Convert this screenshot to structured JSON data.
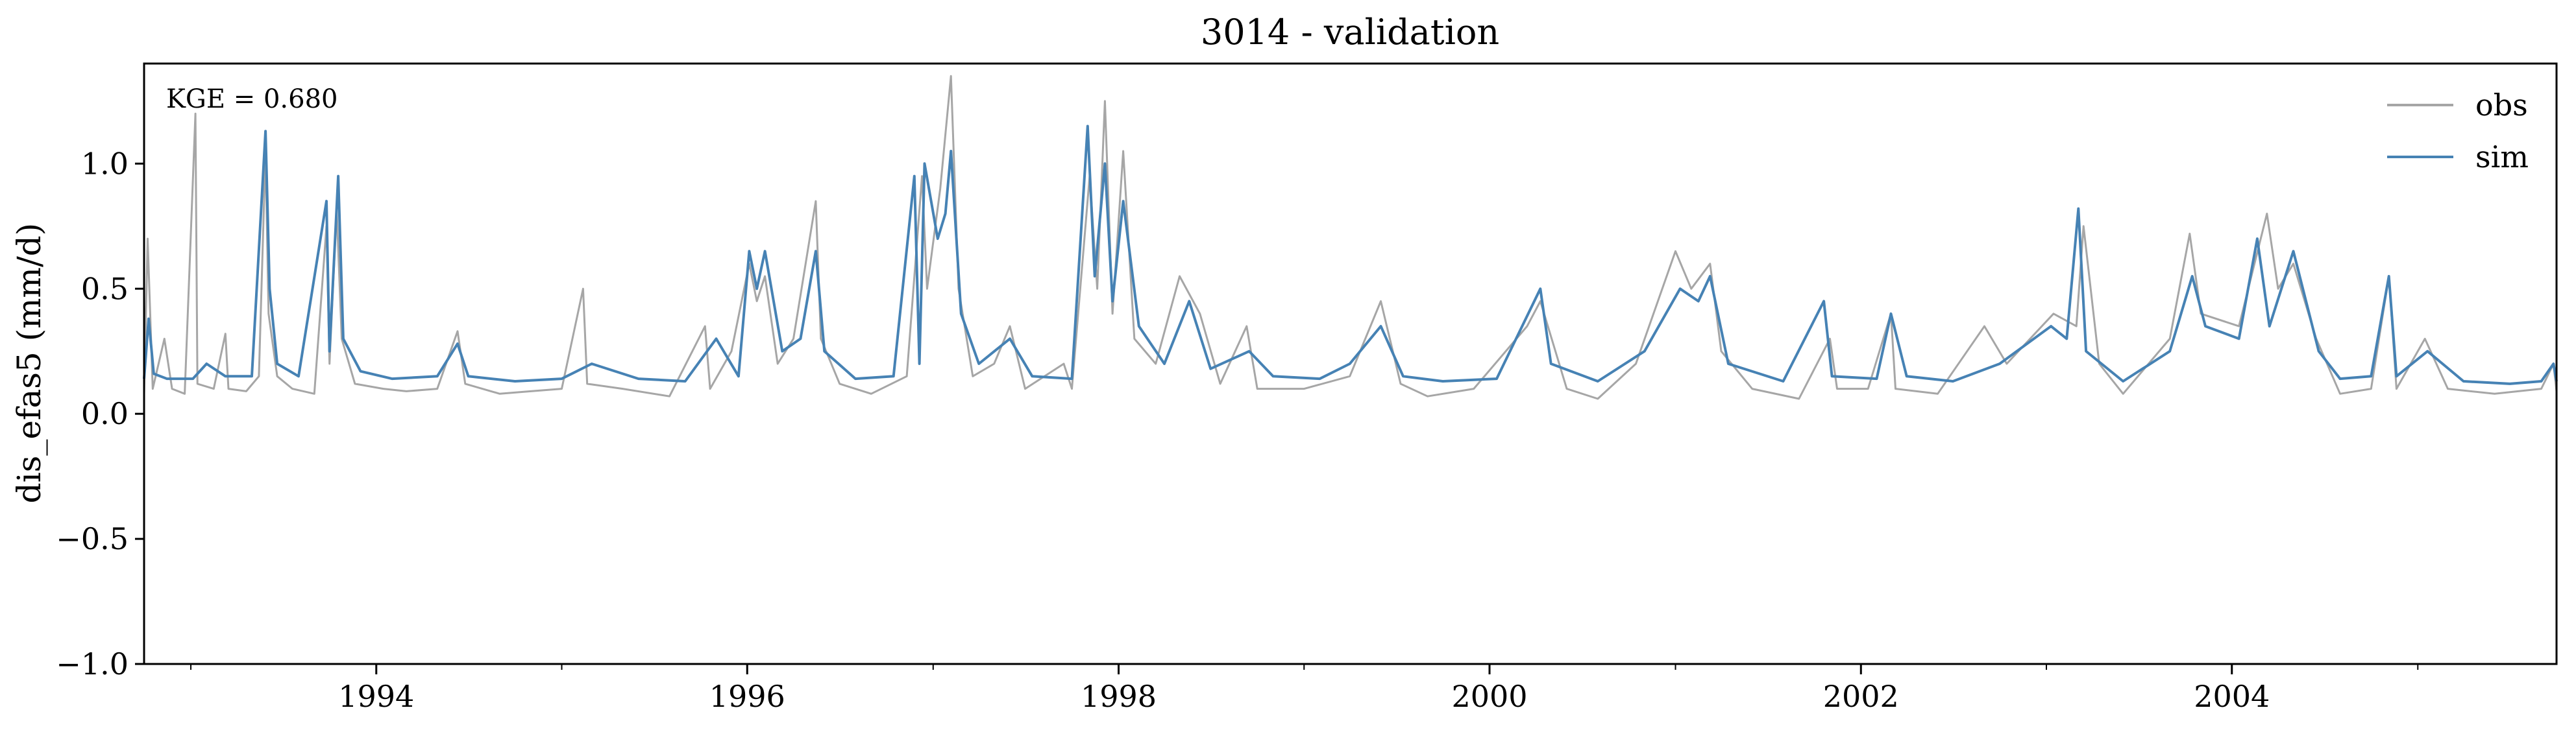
{
  "chart_data": {
    "type": "line",
    "title": "3014 - validation",
    "ylabel": "dis_efas5 (mm/d)",
    "xlabel": "",
    "annotation": "KGE = 0.680",
    "xlim": [
      "1992-10-01",
      "2005-10-01"
    ],
    "ylim": [
      -1.0,
      1.4
    ],
    "y_ticks": [
      -1.0,
      -0.5,
      0.0,
      0.5,
      1.0
    ],
    "y_tick_labels": [
      "−1.0",
      "−0.5",
      "0.0",
      "0.5",
      "1.0"
    ],
    "x_major_ticks": [
      "1994-01-01",
      "1996-01-01",
      "1998-01-01",
      "2000-01-01",
      "2002-01-01",
      "2004-01-01"
    ],
    "x_tick_labels": [
      "1994",
      "1996",
      "1998",
      "2000",
      "2002",
      "2004"
    ],
    "legend": {
      "position": "top-right",
      "entries": [
        "obs",
        "sim"
      ]
    },
    "grid": false,
    "series": [
      {
        "name": "obs",
        "color": "#a6a6a6",
        "points": [
          [
            "1992-10-01",
            0.08
          ],
          [
            "1992-10-08",
            0.7
          ],
          [
            "1992-10-18",
            0.1
          ],
          [
            "1992-11-10",
            0.3
          ],
          [
            "1992-11-25",
            0.1
          ],
          [
            "1992-12-20",
            0.08
          ],
          [
            "1993-01-10",
            1.2
          ],
          [
            "1993-01-14",
            0.12
          ],
          [
            "1993-02-15",
            0.1
          ],
          [
            "1993-03-10",
            0.32
          ],
          [
            "1993-03-16",
            0.1
          ],
          [
            "1993-04-20",
            0.09
          ],
          [
            "1993-05-15",
            0.15
          ],
          [
            "1993-05-28",
            1.05
          ],
          [
            "1993-06-03",
            0.4
          ],
          [
            "1993-06-20",
            0.15
          ],
          [
            "1993-07-20",
            0.1
          ],
          [
            "1993-09-01",
            0.08
          ],
          [
            "1993-09-25",
            0.75
          ],
          [
            "1993-10-01",
            0.2
          ],
          [
            "1993-10-15",
            0.82
          ],
          [
            "1993-10-25",
            0.3
          ],
          [
            "1993-11-20",
            0.12
          ],
          [
            "1994-01-15",
            0.1
          ],
          [
            "1994-03-01",
            0.09
          ],
          [
            "1994-05-01",
            0.1
          ],
          [
            "1994-06-10",
            0.33
          ],
          [
            "1994-06-25",
            0.12
          ],
          [
            "1994-09-01",
            0.08
          ],
          [
            "1994-11-01",
            0.09
          ],
          [
            "1995-01-01",
            0.1
          ],
          [
            "1995-02-12",
            0.5
          ],
          [
            "1995-02-20",
            0.12
          ],
          [
            "1995-05-01",
            0.1
          ],
          [
            "1995-08-01",
            0.07
          ],
          [
            "1995-10-10",
            0.35
          ],
          [
            "1995-10-20",
            0.1
          ],
          [
            "1995-12-01",
            0.25
          ],
          [
            "1996-01-05",
            0.6
          ],
          [
            "1996-01-20",
            0.45
          ],
          [
            "1996-02-05",
            0.55
          ],
          [
            "1996-03-01",
            0.2
          ],
          [
            "1996-04-01",
            0.3
          ],
          [
            "1996-05-15",
            0.85
          ],
          [
            "1996-05-25",
            0.3
          ],
          [
            "1996-07-01",
            0.12
          ],
          [
            "1996-09-01",
            0.08
          ],
          [
            "1996-11-10",
            0.15
          ],
          [
            "1996-12-10",
            0.95
          ],
          [
            "1996-12-20",
            0.5
          ],
          [
            "1997-01-15",
            0.9
          ],
          [
            "1997-02-05",
            1.35
          ],
          [
            "1997-02-20",
            0.5
          ],
          [
            "1997-03-20",
            0.15
          ],
          [
            "1997-05-01",
            0.2
          ],
          [
            "1997-06-01",
            0.35
          ],
          [
            "1997-07-01",
            0.1
          ],
          [
            "1997-09-15",
            0.2
          ],
          [
            "1997-10-01",
            0.1
          ],
          [
            "1997-11-05",
            0.95
          ],
          [
            "1997-11-20",
            0.5
          ],
          [
            "1997-12-05",
            1.25
          ],
          [
            "1997-12-20",
            0.4
          ],
          [
            "1998-01-10",
            1.05
          ],
          [
            "1998-02-01",
            0.3
          ],
          [
            "1998-03-15",
            0.2
          ],
          [
            "1998-05-01",
            0.55
          ],
          [
            "1998-06-10",
            0.4
          ],
          [
            "1998-07-20",
            0.12
          ],
          [
            "1998-09-10",
            0.35
          ],
          [
            "1998-10-01",
            0.1
          ],
          [
            "1999-01-01",
            0.1
          ],
          [
            "1999-04-01",
            0.15
          ],
          [
            "1999-06-01",
            0.45
          ],
          [
            "1999-07-10",
            0.12
          ],
          [
            "1999-09-01",
            0.07
          ],
          [
            "1999-12-01",
            0.1
          ],
          [
            "2000-03-15",
            0.35
          ],
          [
            "2000-04-10",
            0.45
          ],
          [
            "2000-06-01",
            0.1
          ],
          [
            "2000-08-01",
            0.06
          ],
          [
            "2000-10-15",
            0.2
          ],
          [
            "2001-01-01",
            0.65
          ],
          [
            "2001-02-01",
            0.5
          ],
          [
            "2001-03-10",
            0.6
          ],
          [
            "2001-04-01",
            0.25
          ],
          [
            "2001-06-01",
            0.1
          ],
          [
            "2001-09-01",
            0.06
          ],
          [
            "2001-11-01",
            0.3
          ],
          [
            "2001-11-15",
            0.1
          ],
          [
            "2002-01-15",
            0.1
          ],
          [
            "2002-03-01",
            0.4
          ],
          [
            "2002-03-10",
            0.1
          ],
          [
            "2002-06-01",
            0.08
          ],
          [
            "2002-09-01",
            0.35
          ],
          [
            "2002-10-15",
            0.2
          ],
          [
            "2003-01-15",
            0.4
          ],
          [
            "2003-03-01",
            0.35
          ],
          [
            "2003-03-15",
            0.75
          ],
          [
            "2003-04-15",
            0.2
          ],
          [
            "2003-06-01",
            0.08
          ],
          [
            "2003-09-01",
            0.3
          ],
          [
            "2003-10-10",
            0.72
          ],
          [
            "2003-11-01",
            0.4
          ],
          [
            "2004-01-15",
            0.35
          ],
          [
            "2004-03-10",
            0.8
          ],
          [
            "2004-04-01",
            0.5
          ],
          [
            "2004-05-01",
            0.6
          ],
          [
            "2004-06-15",
            0.3
          ],
          [
            "2004-08-01",
            0.08
          ],
          [
            "2004-10-01",
            0.1
          ],
          [
            "2004-11-05",
            0.55
          ],
          [
            "2004-11-20",
            0.1
          ],
          [
            "2005-01-15",
            0.3
          ],
          [
            "2005-03-01",
            0.1
          ],
          [
            "2005-06-01",
            0.08
          ],
          [
            "2005-09-01",
            0.1
          ],
          [
            "2005-09-25",
            0.2
          ],
          [
            "2005-10-01",
            0.09
          ]
        ]
      },
      {
        "name": "sim",
        "color": "#4682b4",
        "points": [
          [
            "1992-10-01",
            0.14
          ],
          [
            "1992-10-10",
            0.38
          ],
          [
            "1992-10-20",
            0.16
          ],
          [
            "1992-11-15",
            0.14
          ],
          [
            "1993-01-05",
            0.14
          ],
          [
            "1993-02-01",
            0.2
          ],
          [
            "1993-03-10",
            0.15
          ],
          [
            "1993-05-01",
            0.15
          ],
          [
            "1993-05-28",
            1.13
          ],
          [
            "1993-06-05",
            0.5
          ],
          [
            "1993-06-20",
            0.2
          ],
          [
            "1993-08-01",
            0.15
          ],
          [
            "1993-09-25",
            0.85
          ],
          [
            "1993-10-01",
            0.25
          ],
          [
            "1993-10-18",
            0.95
          ],
          [
            "1993-10-28",
            0.3
          ],
          [
            "1993-12-01",
            0.17
          ],
          [
            "1994-02-01",
            0.14
          ],
          [
            "1994-05-01",
            0.15
          ],
          [
            "1994-06-10",
            0.28
          ],
          [
            "1994-07-01",
            0.15
          ],
          [
            "1994-10-01",
            0.13
          ],
          [
            "1995-01-01",
            0.14
          ],
          [
            "1995-03-01",
            0.2
          ],
          [
            "1995-06-01",
            0.14
          ],
          [
            "1995-09-01",
            0.13
          ],
          [
            "1995-11-01",
            0.3
          ],
          [
            "1995-12-15",
            0.15
          ],
          [
            "1996-01-05",
            0.65
          ],
          [
            "1996-01-20",
            0.5
          ],
          [
            "1996-02-05",
            0.65
          ],
          [
            "1996-03-10",
            0.25
          ],
          [
            "1996-04-15",
            0.3
          ],
          [
            "1996-05-15",
            0.65
          ],
          [
            "1996-06-01",
            0.25
          ],
          [
            "1996-08-01",
            0.14
          ],
          [
            "1996-10-15",
            0.15
          ],
          [
            "1996-11-25",
            0.95
          ],
          [
            "1996-12-05",
            0.2
          ],
          [
            "1996-12-15",
            1.0
          ],
          [
            "1997-01-10",
            0.7
          ],
          [
            "1997-01-25",
            0.8
          ],
          [
            "1997-02-05",
            1.05
          ],
          [
            "1997-02-25",
            0.4
          ],
          [
            "1997-04-01",
            0.2
          ],
          [
            "1997-06-01",
            0.3
          ],
          [
            "1997-07-15",
            0.15
          ],
          [
            "1997-10-01",
            0.14
          ],
          [
            "1997-11-01",
            1.15
          ],
          [
            "1997-11-15",
            0.55
          ],
          [
            "1997-12-05",
            1.0
          ],
          [
            "1997-12-20",
            0.45
          ],
          [
            "1998-01-10",
            0.85
          ],
          [
            "1998-02-10",
            0.35
          ],
          [
            "1998-04-01",
            0.2
          ],
          [
            "1998-05-20",
            0.45
          ],
          [
            "1998-07-01",
            0.18
          ],
          [
            "1998-09-15",
            0.25
          ],
          [
            "1998-11-01",
            0.15
          ],
          [
            "1999-02-01",
            0.14
          ],
          [
            "1999-04-01",
            0.2
          ],
          [
            "1999-06-01",
            0.35
          ],
          [
            "1999-07-15",
            0.15
          ],
          [
            "1999-10-01",
            0.13
          ],
          [
            "2000-01-15",
            0.14
          ],
          [
            "2000-04-10",
            0.5
          ],
          [
            "2000-05-01",
            0.2
          ],
          [
            "2000-08-01",
            0.13
          ],
          [
            "2000-11-01",
            0.25
          ],
          [
            "2001-01-10",
            0.5
          ],
          [
            "2001-02-15",
            0.45
          ],
          [
            "2001-03-10",
            0.55
          ],
          [
            "2001-04-15",
            0.2
          ],
          [
            "2001-08-01",
            0.13
          ],
          [
            "2001-10-20",
            0.45
          ],
          [
            "2001-11-05",
            0.15
          ],
          [
            "2002-02-01",
            0.14
          ],
          [
            "2002-03-01",
            0.4
          ],
          [
            "2002-04-01",
            0.15
          ],
          [
            "2002-07-01",
            0.13
          ],
          [
            "2002-10-01",
            0.2
          ],
          [
            "2003-01-10",
            0.35
          ],
          [
            "2003-02-10",
            0.3
          ],
          [
            "2003-03-05",
            0.82
          ],
          [
            "2003-03-20",
            0.25
          ],
          [
            "2003-06-01",
            0.13
          ],
          [
            "2003-09-01",
            0.25
          ],
          [
            "2003-10-15",
            0.55
          ],
          [
            "2003-11-10",
            0.35
          ],
          [
            "2004-01-15",
            0.3
          ],
          [
            "2004-02-20",
            0.7
          ],
          [
            "2004-03-15",
            0.35
          ],
          [
            "2004-05-01",
            0.65
          ],
          [
            "2004-06-20",
            0.25
          ],
          [
            "2004-08-01",
            0.14
          ],
          [
            "2004-10-01",
            0.15
          ],
          [
            "2004-11-05",
            0.55
          ],
          [
            "2004-11-20",
            0.15
          ],
          [
            "2005-01-20",
            0.25
          ],
          [
            "2005-04-01",
            0.13
          ],
          [
            "2005-07-01",
            0.12
          ],
          [
            "2005-09-01",
            0.13
          ],
          [
            "2005-09-25",
            0.2
          ],
          [
            "2005-10-01",
            0.13
          ]
        ]
      }
    ]
  }
}
